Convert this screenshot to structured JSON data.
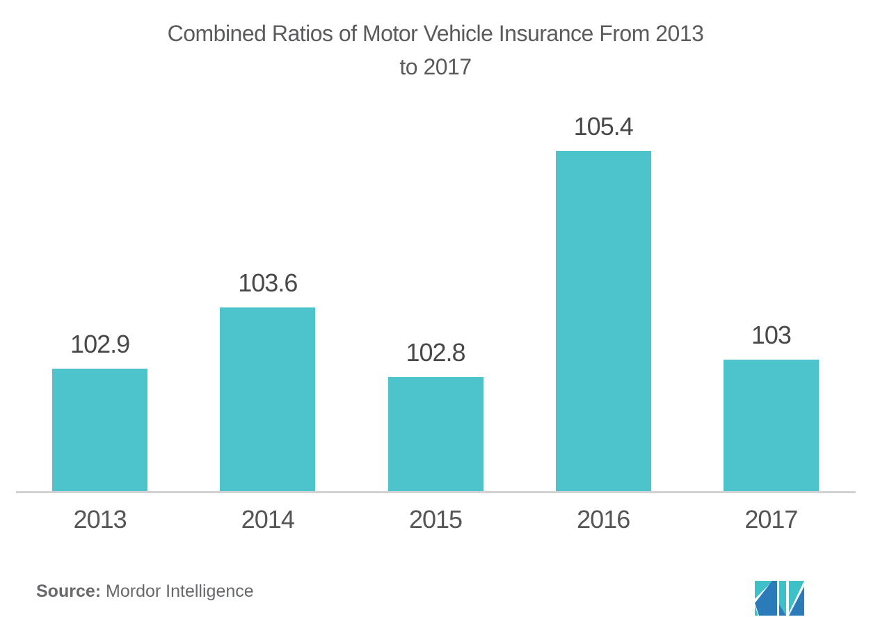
{
  "title_line1": "Combined Ratios of Motor Vehicle Insurance From 2013",
  "title_line2": "to 2017",
  "source": {
    "label": "Source:",
    "text": "Mordor Intelligence"
  },
  "colors": {
    "bar": "#4DC4CB",
    "axis": "#D2D2D2",
    "title_text": "#5A5B5D",
    "value_text": "#47484A",
    "year_text": "#545557",
    "source_text": "#67696C",
    "logo_teal": "#3EC0C9",
    "logo_blue": "#2B7AB9"
  },
  "logo_name": "mordor-intelligence-logo",
  "chart_data": {
    "type": "bar",
    "title": "Combined Ratios of Motor Vehicle Insurance From 2013 to 2017",
    "categories": [
      "2013",
      "2014",
      "2015",
      "2016",
      "2017"
    ],
    "values": [
      102.9,
      103.6,
      102.8,
      105.4,
      103
    ],
    "value_labels": [
      "102.9",
      "103.6",
      "102.8",
      "105.4",
      "103"
    ],
    "xlabel": "",
    "ylabel": "",
    "ylim": [
      101.5,
      106
    ],
    "bar_color": "#4DC4CB",
    "grid": false,
    "legend": false,
    "value_labels_position": "above-bars",
    "source": "Mordor Intelligence"
  }
}
